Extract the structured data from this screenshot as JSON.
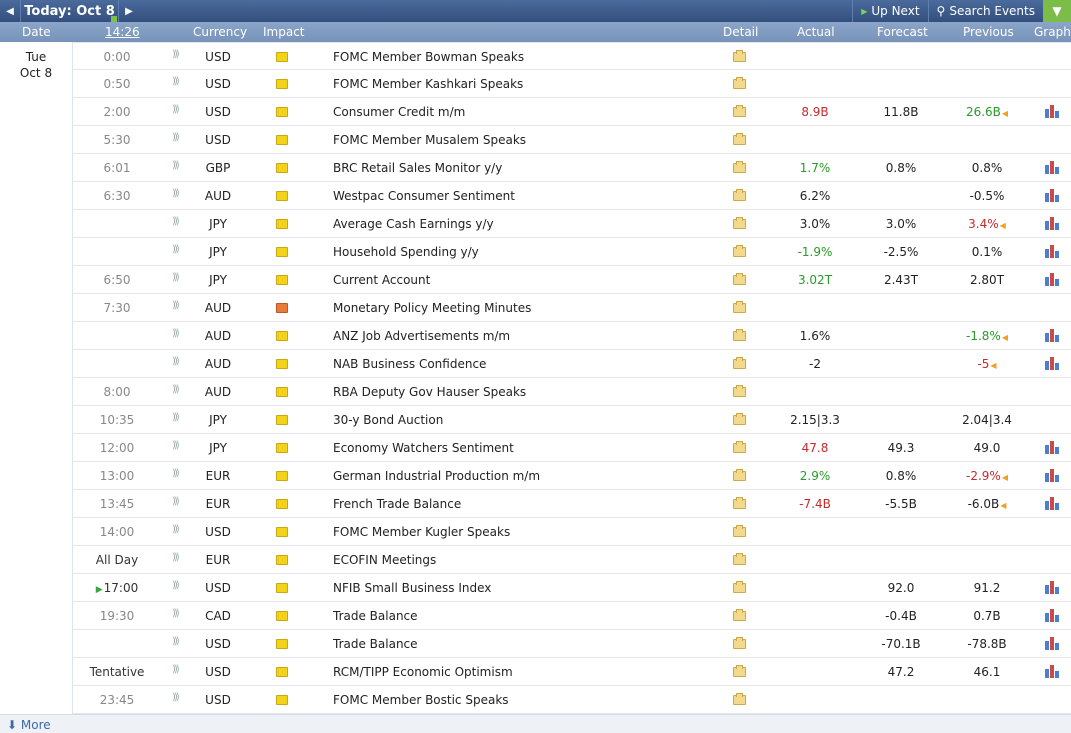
{
  "topbar": {
    "today_label": "Today: Oct 8",
    "up_next_label": "Up Next",
    "search_label": "Search Events"
  },
  "columns": {
    "date": "Date",
    "time": "14:26",
    "currency": "Currency",
    "impact": "Impact",
    "detail": "Detail",
    "actual": "Actual",
    "forecast": "Forecast",
    "previous": "Previous",
    "graph": "Graph"
  },
  "date_cell": {
    "day": "Tue",
    "date": "Oct 8"
  },
  "colors": {
    "positive": "#2a9a2a",
    "negative": "#c62b2b",
    "impact_yellow": "#f2d21a",
    "impact_orange": "#e87a3a",
    "header_blue": "#334f7d"
  },
  "events": [
    {
      "time": "0:00",
      "currency": "USD",
      "impact": "yellow",
      "title": "FOMC Member Bowman Speaks",
      "actual": "",
      "actual_color": "neu",
      "forecast": "",
      "previous": "",
      "previous_color": "neu",
      "revised": false,
      "graph": false
    },
    {
      "time": "0:50",
      "currency": "USD",
      "impact": "yellow",
      "title": "FOMC Member Kashkari Speaks",
      "actual": "",
      "actual_color": "neu",
      "forecast": "",
      "previous": "",
      "previous_color": "neu",
      "revised": false,
      "graph": false
    },
    {
      "time": "2:00",
      "currency": "USD",
      "impact": "yellow",
      "title": "Consumer Credit m/m",
      "actual": "8.9B",
      "actual_color": "neg",
      "forecast": "11.8B",
      "previous": "26.6B",
      "previous_color": "pos",
      "revised": true,
      "graph": true
    },
    {
      "time": "5:30",
      "currency": "USD",
      "impact": "yellow",
      "title": "FOMC Member Musalem Speaks",
      "actual": "",
      "actual_color": "neu",
      "forecast": "",
      "previous": "",
      "previous_color": "neu",
      "revised": false,
      "graph": false
    },
    {
      "time": "6:01",
      "currency": "GBP",
      "impact": "yellow",
      "title": "BRC Retail Sales Monitor y/y",
      "actual": "1.7%",
      "actual_color": "pos",
      "forecast": "0.8%",
      "previous": "0.8%",
      "previous_color": "neu",
      "revised": false,
      "graph": true
    },
    {
      "time": "6:30",
      "currency": "AUD",
      "impact": "yellow",
      "title": "Westpac Consumer Sentiment",
      "actual": "6.2%",
      "actual_color": "neu",
      "forecast": "",
      "previous": "-0.5%",
      "previous_color": "neu",
      "revised": false,
      "graph": true
    },
    {
      "time": "",
      "currency": "JPY",
      "impact": "yellow",
      "title": "Average Cash Earnings y/y",
      "actual": "3.0%",
      "actual_color": "neu",
      "forecast": "3.0%",
      "previous": "3.4%",
      "previous_color": "neg",
      "revised": true,
      "graph": true
    },
    {
      "time": "",
      "currency": "JPY",
      "impact": "yellow",
      "title": "Household Spending y/y",
      "actual": "-1.9%",
      "actual_color": "pos",
      "forecast": "-2.5%",
      "previous": "0.1%",
      "previous_color": "neu",
      "revised": false,
      "graph": true
    },
    {
      "time": "6:50",
      "currency": "JPY",
      "impact": "yellow",
      "title": "Current Account",
      "actual": "3.02T",
      "actual_color": "pos",
      "forecast": "2.43T",
      "previous": "2.80T",
      "previous_color": "neu",
      "revised": false,
      "graph": true
    },
    {
      "time": "7:30",
      "currency": "AUD",
      "impact": "orange",
      "title": "Monetary Policy Meeting Minutes",
      "actual": "",
      "actual_color": "neu",
      "forecast": "",
      "previous": "",
      "previous_color": "neu",
      "revised": false,
      "graph": false
    },
    {
      "time": "",
      "currency": "AUD",
      "impact": "yellow",
      "title": "ANZ Job Advertisements m/m",
      "actual": "1.6%",
      "actual_color": "neu",
      "forecast": "",
      "previous": "-1.8%",
      "previous_color": "pos",
      "revised": true,
      "graph": true
    },
    {
      "time": "",
      "currency": "AUD",
      "impact": "yellow",
      "title": "NAB Business Confidence",
      "actual": "-2",
      "actual_color": "neu",
      "forecast": "",
      "previous": "-5",
      "previous_color": "neg",
      "revised": true,
      "graph": true
    },
    {
      "time": "8:00",
      "currency": "AUD",
      "impact": "yellow",
      "title": "RBA Deputy Gov Hauser Speaks",
      "actual": "",
      "actual_color": "neu",
      "forecast": "",
      "previous": "",
      "previous_color": "neu",
      "revised": false,
      "graph": false
    },
    {
      "time": "10:35",
      "currency": "JPY",
      "impact": "yellow",
      "title": "30-y Bond Auction",
      "actual": "2.15|3.3",
      "actual_color": "neu",
      "forecast": "",
      "previous": "2.04|3.4",
      "previous_color": "neu",
      "revised": false,
      "graph": false
    },
    {
      "time": "12:00",
      "currency": "JPY",
      "impact": "yellow",
      "title": "Economy Watchers Sentiment",
      "actual": "47.8",
      "actual_color": "neg",
      "forecast": "49.3",
      "previous": "49.0",
      "previous_color": "neu",
      "revised": false,
      "graph": true
    },
    {
      "time": "13:00",
      "currency": "EUR",
      "impact": "yellow",
      "title": "German Industrial Production m/m",
      "actual": "2.9%",
      "actual_color": "pos",
      "forecast": "0.8%",
      "previous": "-2.9%",
      "previous_color": "neg",
      "revised": true,
      "graph": true
    },
    {
      "time": "13:45",
      "currency": "EUR",
      "impact": "yellow",
      "title": "French Trade Balance",
      "actual": "-7.4B",
      "actual_color": "neg",
      "forecast": "-5.5B",
      "previous": "-6.0B",
      "previous_color": "neu",
      "revised": true,
      "graph": true
    },
    {
      "time": "14:00",
      "currency": "USD",
      "impact": "yellow",
      "title": "FOMC Member Kugler Speaks",
      "actual": "",
      "actual_color": "neu",
      "forecast": "",
      "previous": "",
      "previous_color": "neu",
      "revised": false,
      "graph": false
    },
    {
      "time": "All Day",
      "currency": "EUR",
      "impact": "yellow",
      "title": "ECOFIN Meetings",
      "actual": "",
      "actual_color": "neu",
      "forecast": "",
      "previous": "",
      "previous_color": "neu",
      "revised": false,
      "graph": false
    },
    {
      "time": "17:00",
      "currency": "USD",
      "impact": "yellow",
      "title": "NFIB Small Business Index",
      "actual": "",
      "actual_color": "neu",
      "forecast": "92.0",
      "previous": "91.2",
      "previous_color": "neu",
      "revised": false,
      "graph": true,
      "next": true
    },
    {
      "time": "19:30",
      "currency": "CAD",
      "impact": "yellow",
      "title": "Trade Balance",
      "actual": "",
      "actual_color": "neu",
      "forecast": "-0.4B",
      "previous": "0.7B",
      "previous_color": "neu",
      "revised": false,
      "graph": true
    },
    {
      "time": "",
      "currency": "USD",
      "impact": "yellow",
      "title": "Trade Balance",
      "actual": "",
      "actual_color": "neu",
      "forecast": "-70.1B",
      "previous": "-78.8B",
      "previous_color": "neu",
      "revised": false,
      "graph": true
    },
    {
      "time": "Tentative",
      "currency": "USD",
      "impact": "yellow",
      "title": "RCM/TIPP Economic Optimism",
      "actual": "",
      "actual_color": "neu",
      "forecast": "47.2",
      "previous": "46.1",
      "previous_color": "neu",
      "revised": false,
      "graph": true
    },
    {
      "time": "23:45",
      "currency": "USD",
      "impact": "yellow",
      "title": "FOMC Member Bostic Speaks",
      "actual": "",
      "actual_color": "neu",
      "forecast": "",
      "previous": "",
      "previous_color": "neu",
      "revised": false,
      "graph": false
    }
  ],
  "footer": {
    "more_label": "More"
  }
}
